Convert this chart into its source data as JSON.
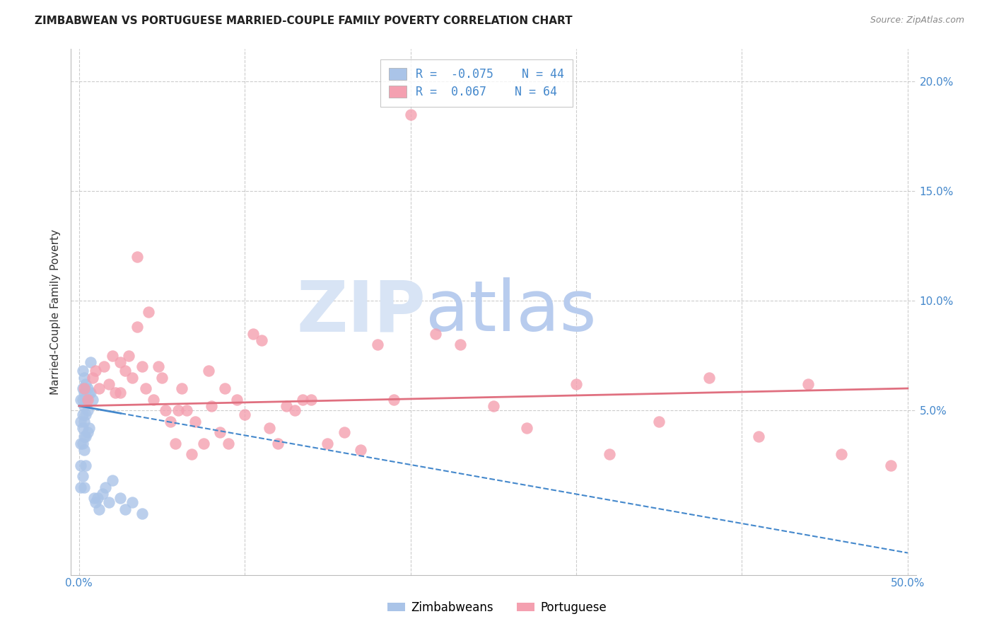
{
  "title": "ZIMBABWEAN VS PORTUGUESE MARRIED-COUPLE FAMILY POVERTY CORRELATION CHART",
  "source": "Source: ZipAtlas.com",
  "ylabel": "Married-Couple Family Poverty",
  "xlim": [
    -0.005,
    0.505
  ],
  "ylim": [
    -0.025,
    0.215
  ],
  "ytick_positions": [
    0.05,
    0.1,
    0.15,
    0.2
  ],
  "ytick_labels": [
    "5.0%",
    "10.0%",
    "15.0%",
    "20.0%"
  ],
  "xtick_positions": [
    0.0,
    0.1,
    0.2,
    0.3,
    0.4,
    0.5
  ],
  "xtick_show": [
    0.0,
    0.5
  ],
  "xtick_labels_show": [
    "0.0%",
    "50.0%"
  ],
  "background_color": "#ffffff",
  "grid_color": "#cccccc",
  "zim_color": "#aac4e8",
  "por_color": "#f4a0b0",
  "zim_line_color": "#4488cc",
  "por_line_color": "#e07080",
  "tick_label_color": "#4488cc",
  "zim_R": -0.075,
  "zim_N": 44,
  "por_R": 0.067,
  "por_N": 64,
  "watermark_zip": "ZIP",
  "watermark_atlas": "atlas",
  "watermark_color_zip": "#d8e4f5",
  "watermark_color_atlas": "#b8ccee",
  "legend_label_zim": "Zimbabweans",
  "legend_label_por": "Portuguese",
  "zim_points_x": [
    0.001,
    0.001,
    0.001,
    0.001,
    0.001,
    0.002,
    0.002,
    0.002,
    0.002,
    0.002,
    0.002,
    0.002,
    0.003,
    0.003,
    0.003,
    0.003,
    0.003,
    0.003,
    0.003,
    0.004,
    0.004,
    0.004,
    0.004,
    0.004,
    0.005,
    0.005,
    0.005,
    0.006,
    0.006,
    0.007,
    0.007,
    0.008,
    0.009,
    0.01,
    0.011,
    0.012,
    0.014,
    0.016,
    0.018,
    0.02,
    0.025,
    0.028,
    0.032,
    0.038
  ],
  "zim_points_y": [
    0.055,
    0.045,
    0.035,
    0.025,
    0.015,
    0.068,
    0.06,
    0.055,
    0.048,
    0.042,
    0.035,
    0.02,
    0.065,
    0.058,
    0.052,
    0.045,
    0.038,
    0.032,
    0.015,
    0.062,
    0.055,
    0.048,
    0.038,
    0.025,
    0.06,
    0.05,
    0.04,
    0.058,
    0.042,
    0.072,
    0.058,
    0.055,
    0.01,
    0.008,
    0.01,
    0.005,
    0.012,
    0.015,
    0.008,
    0.018,
    0.01,
    0.005,
    0.008,
    0.003
  ],
  "por_points_x": [
    0.003,
    0.005,
    0.008,
    0.01,
    0.012,
    0.015,
    0.018,
    0.02,
    0.022,
    0.025,
    0.025,
    0.028,
    0.03,
    0.032,
    0.035,
    0.035,
    0.038,
    0.04,
    0.042,
    0.045,
    0.048,
    0.05,
    0.052,
    0.055,
    0.058,
    0.06,
    0.062,
    0.065,
    0.068,
    0.07,
    0.075,
    0.078,
    0.08,
    0.085,
    0.088,
    0.09,
    0.095,
    0.1,
    0.105,
    0.11,
    0.115,
    0.12,
    0.125,
    0.13,
    0.135,
    0.14,
    0.15,
    0.16,
    0.17,
    0.18,
    0.19,
    0.2,
    0.215,
    0.23,
    0.25,
    0.27,
    0.3,
    0.32,
    0.35,
    0.38,
    0.41,
    0.44,
    0.46,
    0.49
  ],
  "por_points_y": [
    0.06,
    0.055,
    0.065,
    0.068,
    0.06,
    0.07,
    0.062,
    0.075,
    0.058,
    0.072,
    0.058,
    0.068,
    0.075,
    0.065,
    0.12,
    0.088,
    0.07,
    0.06,
    0.095,
    0.055,
    0.07,
    0.065,
    0.05,
    0.045,
    0.035,
    0.05,
    0.06,
    0.05,
    0.03,
    0.045,
    0.035,
    0.068,
    0.052,
    0.04,
    0.06,
    0.035,
    0.055,
    0.048,
    0.085,
    0.082,
    0.042,
    0.035,
    0.052,
    0.05,
    0.055,
    0.055,
    0.035,
    0.04,
    0.032,
    0.08,
    0.055,
    0.185,
    0.085,
    0.08,
    0.052,
    0.042,
    0.062,
    0.03,
    0.045,
    0.065,
    0.038,
    0.062,
    0.03,
    0.025
  ],
  "zim_trend_x": [
    0.0,
    0.5
  ],
  "zim_trend_y_start": 0.052,
  "zim_trend_y_end": -0.015,
  "por_trend_x": [
    0.0,
    0.5
  ],
  "por_trend_y_start": 0.052,
  "por_trend_y_end": 0.06
}
